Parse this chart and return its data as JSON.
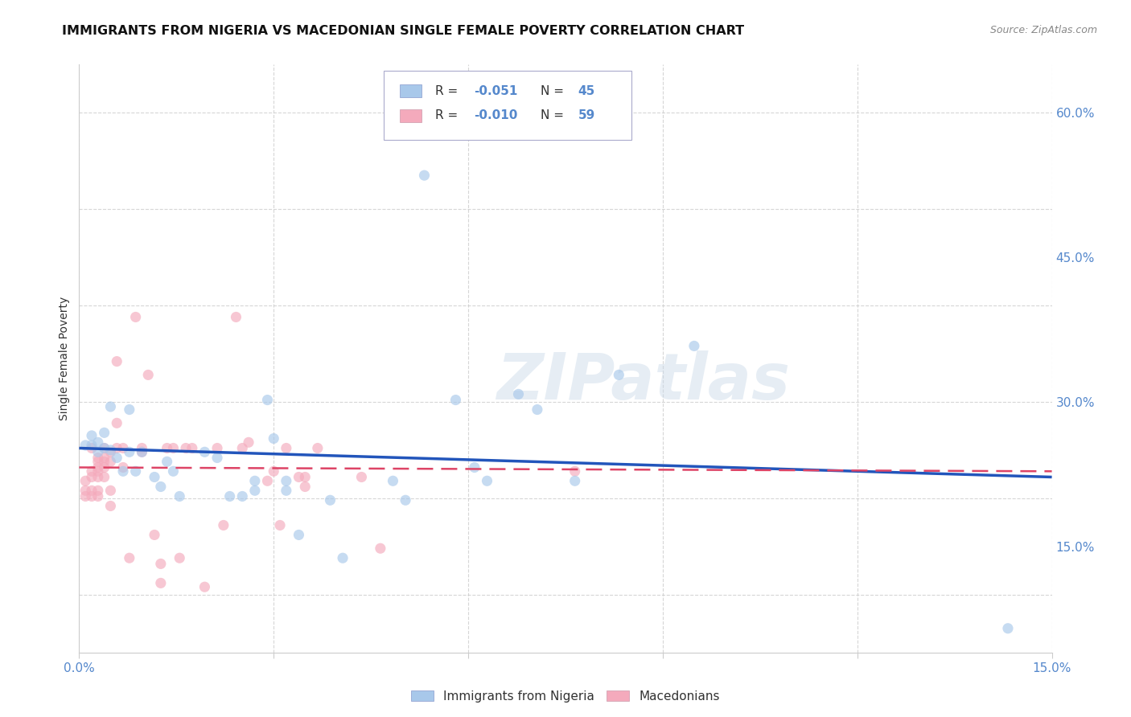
{
  "title": "IMMIGRANTS FROM NIGERIA VS MACEDONIAN SINGLE FEMALE POVERTY CORRELATION CHART",
  "source": "Source: ZipAtlas.com",
  "ylabel": "Single Female Poverty",
  "y_ticks_right": [
    "15.0%",
    "30.0%",
    "45.0%",
    "60.0%"
  ],
  "y_tick_vals": [
    0.15,
    0.3,
    0.45,
    0.6
  ],
  "legend_entries": [
    {
      "label": "Immigrants from Nigeria",
      "color": "#a8c8ea",
      "R": "-0.051",
      "N": "45"
    },
    {
      "label": "Macedonians",
      "color": "#f4aabc",
      "R": "-0.010",
      "N": "59"
    }
  ],
  "blue_scatter": [
    [
      0.001,
      0.255
    ],
    [
      0.002,
      0.265
    ],
    [
      0.002,
      0.255
    ],
    [
      0.003,
      0.258
    ],
    [
      0.003,
      0.248
    ],
    [
      0.004,
      0.268
    ],
    [
      0.004,
      0.252
    ],
    [
      0.005,
      0.295
    ],
    [
      0.005,
      0.25
    ],
    [
      0.006,
      0.242
    ],
    [
      0.007,
      0.228
    ],
    [
      0.008,
      0.292
    ],
    [
      0.008,
      0.248
    ],
    [
      0.009,
      0.228
    ],
    [
      0.01,
      0.248
    ],
    [
      0.012,
      0.222
    ],
    [
      0.013,
      0.212
    ],
    [
      0.014,
      0.238
    ],
    [
      0.015,
      0.228
    ],
    [
      0.016,
      0.202
    ],
    [
      0.02,
      0.248
    ],
    [
      0.022,
      0.242
    ],
    [
      0.024,
      0.202
    ],
    [
      0.026,
      0.202
    ],
    [
      0.028,
      0.218
    ],
    [
      0.028,
      0.208
    ],
    [
      0.03,
      0.302
    ],
    [
      0.031,
      0.262
    ],
    [
      0.033,
      0.218
    ],
    [
      0.033,
      0.208
    ],
    [
      0.035,
      0.162
    ],
    [
      0.04,
      0.198
    ],
    [
      0.042,
      0.138
    ],
    [
      0.05,
      0.218
    ],
    [
      0.052,
      0.198
    ],
    [
      0.055,
      0.535
    ],
    [
      0.06,
      0.302
    ],
    [
      0.063,
      0.232
    ],
    [
      0.065,
      0.218
    ],
    [
      0.07,
      0.308
    ],
    [
      0.073,
      0.292
    ],
    [
      0.079,
      0.218
    ],
    [
      0.086,
      0.328
    ],
    [
      0.098,
      0.358
    ],
    [
      0.148,
      0.065
    ]
  ],
  "pink_scatter": [
    [
      0.001,
      0.218
    ],
    [
      0.001,
      0.208
    ],
    [
      0.001,
      0.202
    ],
    [
      0.002,
      0.252
    ],
    [
      0.002,
      0.228
    ],
    [
      0.002,
      0.222
    ],
    [
      0.002,
      0.208
    ],
    [
      0.002,
      0.202
    ],
    [
      0.003,
      0.242
    ],
    [
      0.003,
      0.238
    ],
    [
      0.003,
      0.232
    ],
    [
      0.003,
      0.228
    ],
    [
      0.003,
      0.222
    ],
    [
      0.003,
      0.208
    ],
    [
      0.003,
      0.202
    ],
    [
      0.004,
      0.252
    ],
    [
      0.004,
      0.242
    ],
    [
      0.004,
      0.238
    ],
    [
      0.004,
      0.232
    ],
    [
      0.004,
      0.222
    ],
    [
      0.005,
      0.248
    ],
    [
      0.005,
      0.238
    ],
    [
      0.005,
      0.208
    ],
    [
      0.005,
      0.192
    ],
    [
      0.006,
      0.342
    ],
    [
      0.006,
      0.278
    ],
    [
      0.006,
      0.252
    ],
    [
      0.007,
      0.252
    ],
    [
      0.007,
      0.232
    ],
    [
      0.008,
      0.138
    ],
    [
      0.009,
      0.388
    ],
    [
      0.01,
      0.252
    ],
    [
      0.01,
      0.248
    ],
    [
      0.011,
      0.328
    ],
    [
      0.012,
      0.162
    ],
    [
      0.013,
      0.132
    ],
    [
      0.013,
      0.112
    ],
    [
      0.014,
      0.252
    ],
    [
      0.015,
      0.252
    ],
    [
      0.016,
      0.138
    ],
    [
      0.017,
      0.252
    ],
    [
      0.018,
      0.252
    ],
    [
      0.02,
      0.108
    ],
    [
      0.022,
      0.252
    ],
    [
      0.023,
      0.172
    ],
    [
      0.025,
      0.388
    ],
    [
      0.026,
      0.252
    ],
    [
      0.027,
      0.258
    ],
    [
      0.03,
      0.218
    ],
    [
      0.031,
      0.228
    ],
    [
      0.032,
      0.172
    ],
    [
      0.033,
      0.252
    ],
    [
      0.035,
      0.222
    ],
    [
      0.036,
      0.222
    ],
    [
      0.036,
      0.212
    ],
    [
      0.038,
      0.252
    ],
    [
      0.045,
      0.222
    ],
    [
      0.048,
      0.148
    ],
    [
      0.079,
      0.228
    ]
  ],
  "xlim": [
    0.0,
    0.155
  ],
  "ylim": [
    0.04,
    0.65
  ],
  "blue_line_x": [
    0.0,
    0.155
  ],
  "blue_line_y": [
    0.252,
    0.222
  ],
  "pink_line_x": [
    0.0,
    0.155
  ],
  "pink_line_y": [
    0.232,
    0.228
  ],
  "scatter_alpha": 0.65,
  "scatter_size": 90,
  "background_color": "#ffffff",
  "grid_color": "#cccccc",
  "watermark": "ZIPatlas",
  "blue_color": "#a8c8ea",
  "pink_color": "#f4aabc",
  "blue_line_color": "#2255bb",
  "pink_line_color": "#dd4466",
  "title_fontsize": 11.5,
  "axis_label_fontsize": 10,
  "tick_label_color": "#5588cc",
  "x_grid_ticks": [
    0.0,
    0.031,
    0.062,
    0.093,
    0.124,
    0.155
  ]
}
